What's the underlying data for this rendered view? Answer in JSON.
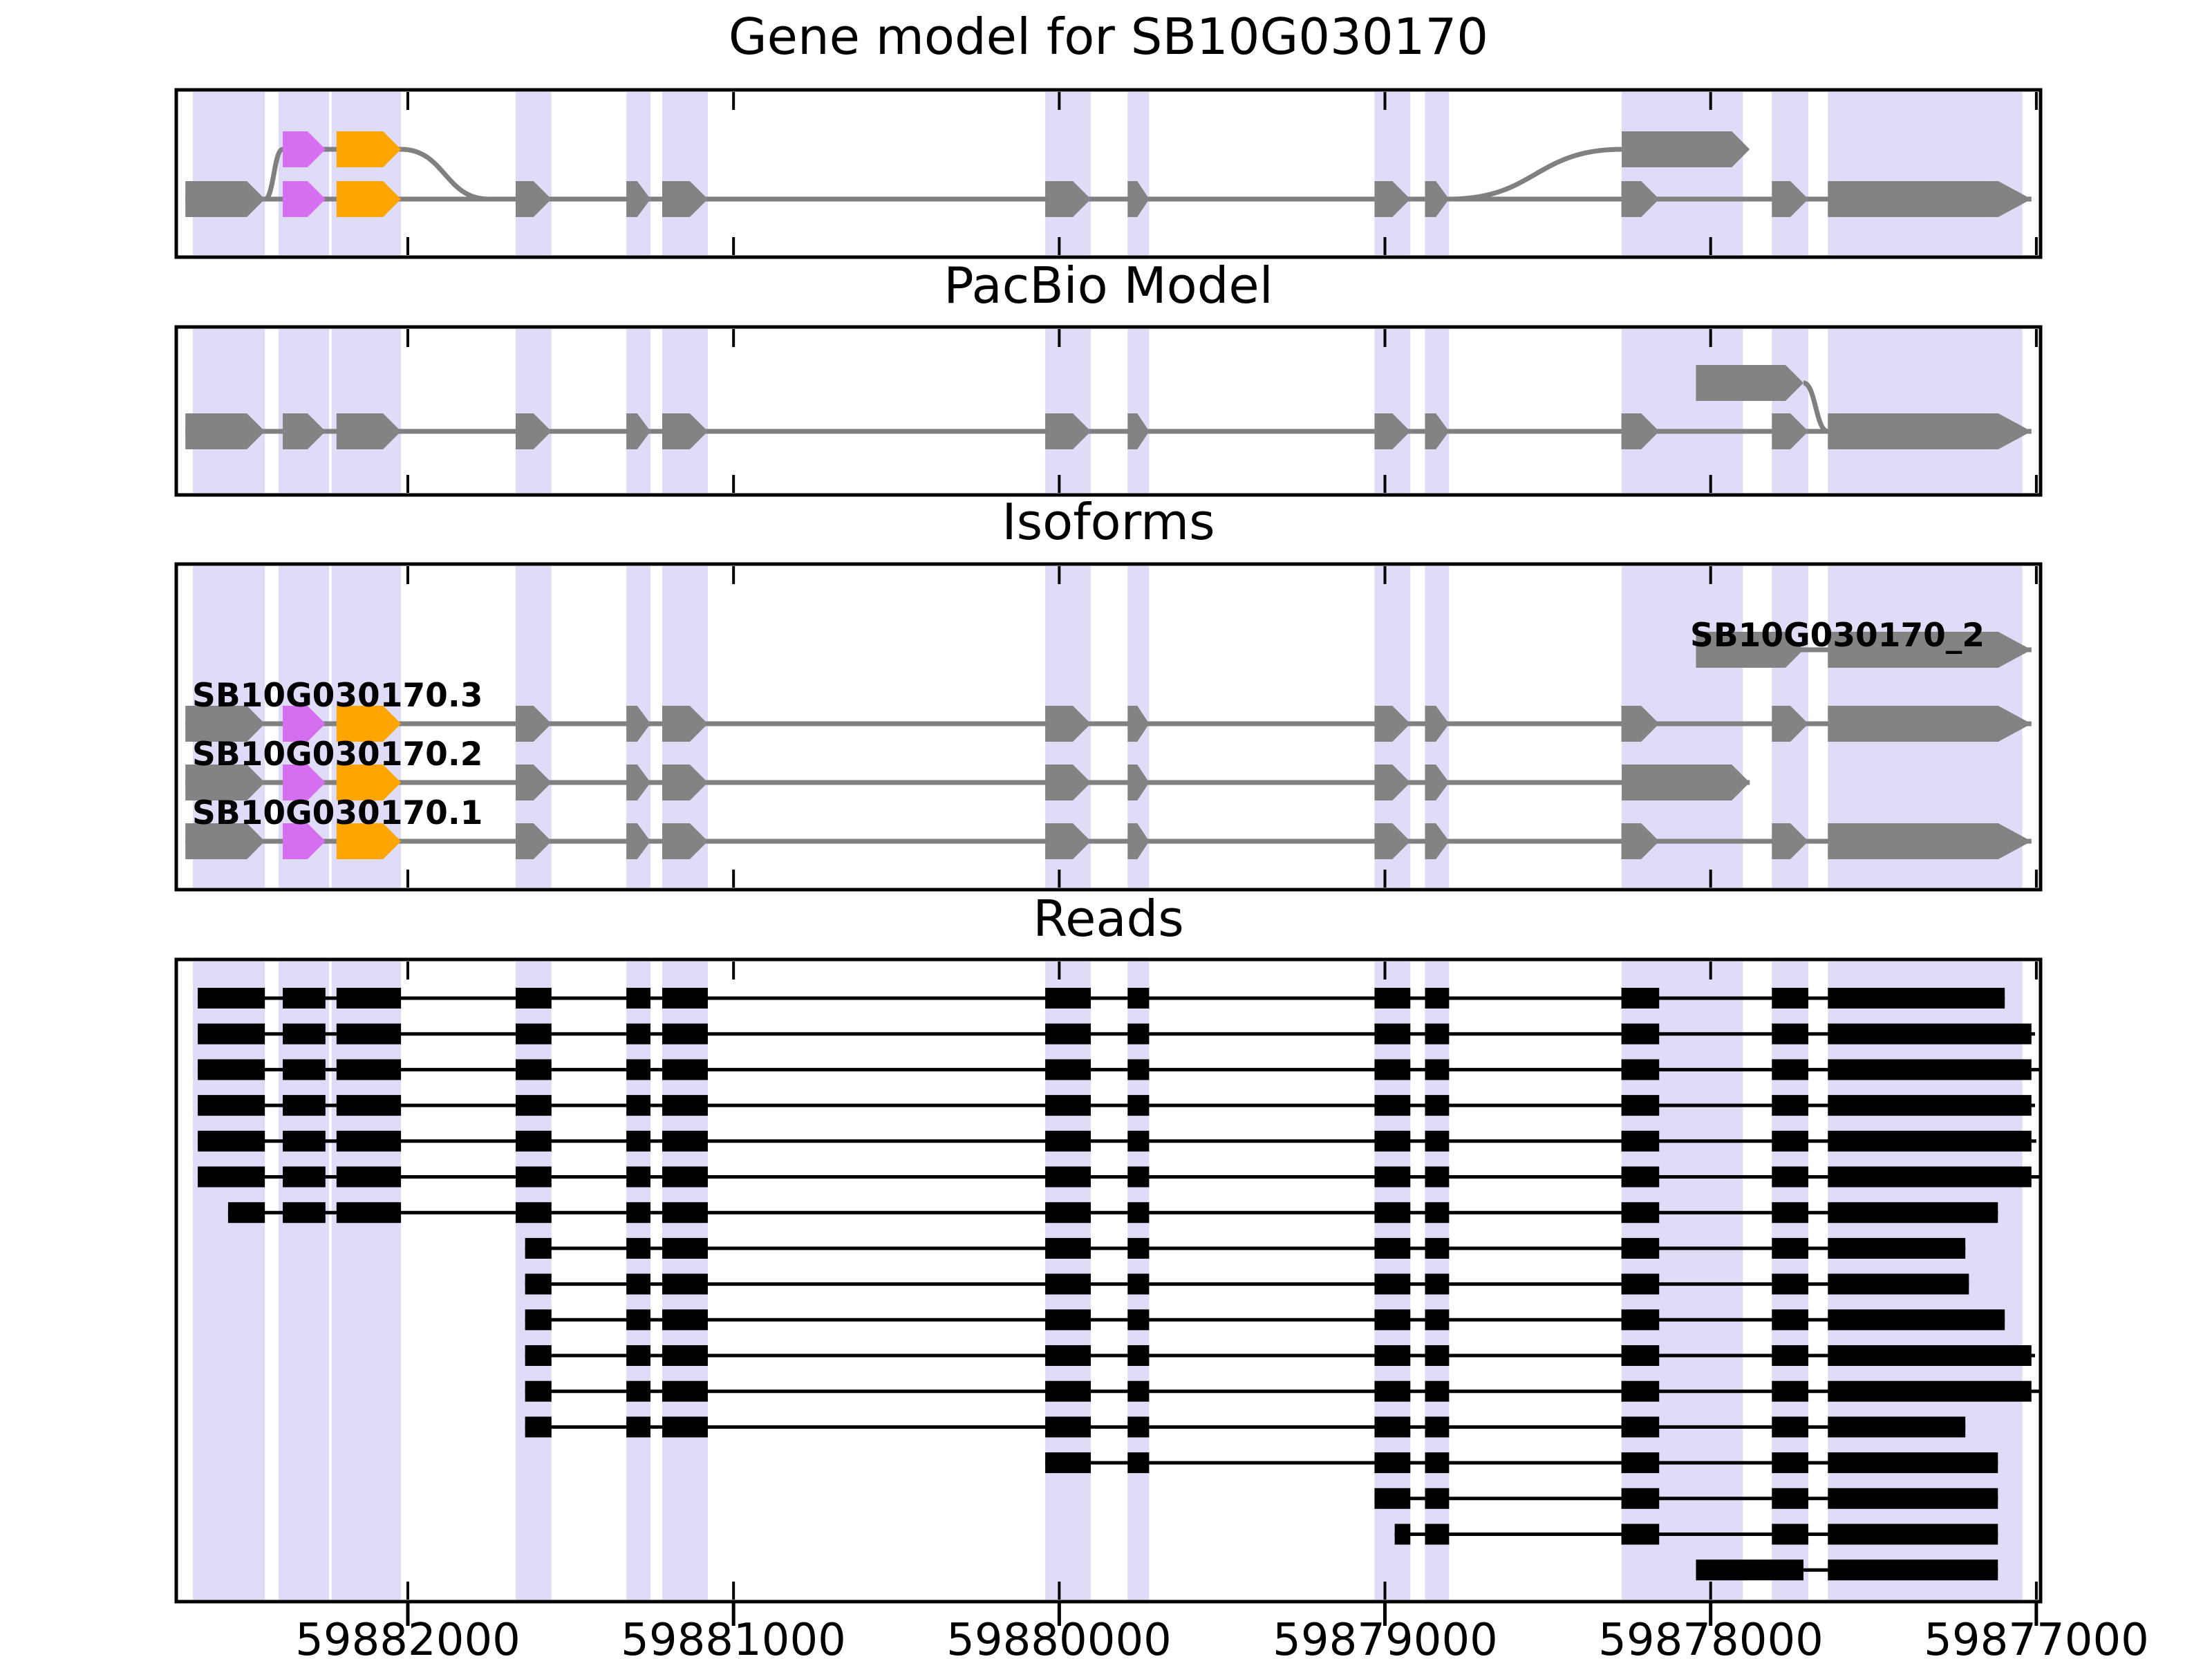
{
  "titles": {
    "gene_model": "Gene model for SB10G030170",
    "pacbio": "PacBio Model",
    "isoforms": "Isoforms",
    "reads": "Reads"
  },
  "axis": {
    "left_bp": 59882711,
    "right_bp": 59876987,
    "ticks": [
      {
        "value": 59882000,
        "label": "59882000"
      },
      {
        "value": 59881000,
        "label": "59881000"
      },
      {
        "value": 59880000,
        "label": "59880000"
      },
      {
        "value": 59879000,
        "label": "59879000"
      },
      {
        "value": 59878000,
        "label": "59878000"
      },
      {
        "value": 59877000,
        "label": "59877000"
      }
    ]
  },
  "colors": {
    "exon_gray": "#838383",
    "intron_gray": "#808080",
    "violet": "#d66ef2",
    "orange": "#ffa500",
    "read_black": "#000000",
    "band": "#dedcf6",
    "border": "#000000",
    "background": "#ffffff"
  },
  "exons": {
    "e1": {
      "start": 59882683,
      "end": 59882439
    },
    "e2": {
      "start": 59882384,
      "end": 59882253
    },
    "e3": {
      "start": 59882219,
      "end": 59882021
    },
    "e4": {
      "start": 59881669,
      "end": 59881559
    },
    "e5": {
      "start": 59881329,
      "end": 59881255
    },
    "e6": {
      "start": 59881219,
      "end": 59881079
    },
    "e7": {
      "start": 59880043,
      "end": 59879903
    },
    "e8": {
      "start": 59879790,
      "end": 59879724
    },
    "e9": {
      "start": 59879032,
      "end": 59878922
    },
    "e10": {
      "start": 59878877,
      "end": 59878803
    },
    "e11": {
      "start": 59878274,
      "end": 59878158
    },
    "e12": {
      "start": 59877812,
      "end": 59877700
    },
    "e13": {
      "start": 59877640,
      "end": 59877015
    },
    "alt_last": {
      "start": 59878273,
      "end": 59877880
    },
    "p2_first": {
      "start": 59878045,
      "end": 59877715
    }
  },
  "highlight_bands": [
    [
      59882660,
      59882439
    ],
    [
      59882397,
      59882242
    ],
    [
      59882234,
      59882021
    ],
    [
      59881669,
      59881559
    ],
    [
      59881329,
      59881255
    ],
    [
      59881219,
      59881079
    ],
    [
      59880043,
      59879903
    ],
    [
      59879790,
      59879724
    ],
    [
      59879032,
      59878922
    ],
    [
      59878877,
      59878803
    ],
    [
      59878273,
      59877901
    ],
    [
      59877812,
      59877700
    ],
    [
      59877640,
      59877043
    ]
  ],
  "gene_model": {
    "base_exons": [
      "e1",
      "e2",
      "e3",
      "e4",
      "e5",
      "e6",
      "e7",
      "e8",
      "e9",
      "e10",
      "e11",
      "e12",
      "e13"
    ],
    "exon_colors": {
      "e2": "violet",
      "e3": "orange"
    },
    "up_exons": [
      {
        "id": "e2",
        "color": "violet"
      },
      {
        "id": "e3",
        "color": "orange"
      },
      {
        "id": "alt_last",
        "color": "gray"
      }
    ],
    "up_line": {
      "from": 59882384,
      "to": 59882021
    },
    "curves": [
      {
        "x1_bp": 59882439,
        "level1": "base",
        "x2_bp": 59882384,
        "level2": "up"
      },
      {
        "x1_bp": 59882021,
        "level1": "up",
        "x2_bp": 59881752,
        "level2": "base"
      },
      {
        "x1_bp": 59878803,
        "level1": "base",
        "x2_bp": 59878273,
        "level2": "up"
      }
    ]
  },
  "pacbio_model": {
    "base_exons": [
      "e1",
      "e2",
      "e3",
      "e4",
      "e5",
      "e6",
      "e7",
      "e8",
      "e9",
      "e10",
      "e11",
      "e12",
      "e13"
    ],
    "exon_colors": {},
    "up_exons": [
      {
        "id": "p2_first",
        "color": "gray"
      }
    ],
    "curves": [
      {
        "x1_bp": 59877715,
        "level1": "up",
        "x2_bp": 59877640,
        "level2": "base"
      }
    ]
  },
  "isoforms": [
    {
      "label": "SB10G030170_2",
      "exons": [
        "p2_first",
        "e13"
      ],
      "exon_colors": {}
    },
    {
      "label": "SB10G030170.3",
      "exons": [
        "e1",
        "e2",
        "e3",
        "e4",
        "e5",
        "e6",
        "e7",
        "e8",
        "e9",
        "e10",
        "e11",
        "e12",
        "e13"
      ],
      "exon_colors": {
        "e2": "violet",
        "e3": "orange"
      }
    },
    {
      "label": "SB10G030170.2",
      "exons": [
        "e1",
        "e2",
        "e3",
        "e4",
        "e5",
        "e6",
        "e7",
        "e8",
        "e9",
        "e10",
        "alt_last"
      ],
      "exon_colors": {
        "e2": "violet",
        "e3": "orange"
      }
    },
    {
      "label": "SB10G030170.1",
      "exons": [
        "e1",
        "e2",
        "e3",
        "e4",
        "e5",
        "e6",
        "e7",
        "e8",
        "e9",
        "e10",
        "e11",
        "e12",
        "e13"
      ],
      "exon_colors": {
        "e2": "violet",
        "e3": "orange"
      }
    }
  ],
  "reads": [
    {
      "start": 59882645,
      "end": 59877097,
      "exons": [
        "e1",
        "e2",
        "e3",
        "e4",
        "e5",
        "e6",
        "e7",
        "e8",
        "e9",
        "e10",
        "e11",
        "e12",
        "e13"
      ]
    },
    {
      "start": 59882645,
      "end": 59877004,
      "exons": [
        "e1",
        "e2",
        "e3",
        "e4",
        "e5",
        "e6",
        "e7",
        "e8",
        "e9",
        "e10",
        "e11",
        "e12",
        "e13"
      ]
    },
    {
      "start": 59882645,
      "end": 59876990,
      "exons": [
        "e1",
        "e2",
        "e3",
        "e4",
        "e5",
        "e6",
        "e7",
        "e8",
        "e9",
        "e10",
        "e11",
        "e12",
        "e13"
      ]
    },
    {
      "start": 59882645,
      "end": 59877004,
      "exons": [
        "e1",
        "e2",
        "e3",
        "e4",
        "e5",
        "e6",
        "e7",
        "e8",
        "e9",
        "e10",
        "e11",
        "e12",
        "e13"
      ]
    },
    {
      "start": 59882645,
      "end": 59877000,
      "exons": [
        "e1",
        "e2",
        "e3",
        "e4",
        "e5",
        "e6",
        "e7",
        "e8",
        "e9",
        "e10",
        "e11",
        "e12",
        "e13"
      ]
    },
    {
      "start": 59882645,
      "end": 59876990,
      "exons": [
        "e1",
        "e2",
        "e3",
        "e4",
        "e5",
        "e6",
        "e7",
        "e8",
        "e9",
        "e10",
        "e11",
        "e12",
        "e13"
      ]
    },
    {
      "start": 59882552,
      "end": 59877118,
      "exons": [
        "e1",
        "e2",
        "e3",
        "e4",
        "e5",
        "e6",
        "e7",
        "e8",
        "e9",
        "e10",
        "e11",
        "e12",
        "e13"
      ]
    },
    {
      "start": 59881640,
      "end": 59877218,
      "exons": [
        "e4",
        "e5",
        "e6",
        "e7",
        "e8",
        "e9",
        "e10",
        "e11",
        "e12",
        "e13"
      ]
    },
    {
      "start": 59881640,
      "end": 59877207,
      "exons": [
        "e4",
        "e5",
        "e6",
        "e7",
        "e8",
        "e9",
        "e10",
        "e11",
        "e12",
        "e13"
      ]
    },
    {
      "start": 59881640,
      "end": 59877097,
      "exons": [
        "e4",
        "e5",
        "e6",
        "e7",
        "e8",
        "e9",
        "e10",
        "e11",
        "e12",
        "e13"
      ]
    },
    {
      "start": 59881640,
      "end": 59877004,
      "exons": [
        "e4",
        "e5",
        "e6",
        "e7",
        "e8",
        "e9",
        "e10",
        "e11",
        "e12",
        "e13"
      ]
    },
    {
      "start": 59881640,
      "end": 59876990,
      "exons": [
        "e4",
        "e5",
        "e6",
        "e7",
        "e8",
        "e9",
        "e10",
        "e11",
        "e12",
        "e13"
      ]
    },
    {
      "start": 59881640,
      "end": 59877218,
      "exons": [
        "e4",
        "e5",
        "e6",
        "e7",
        "e8",
        "e9",
        "e10",
        "e11",
        "e12",
        "e13"
      ]
    },
    {
      "start": 59880043,
      "end": 59877118,
      "exons": [
        "e7",
        "e8",
        "e9",
        "e10",
        "e11",
        "e12",
        "e13"
      ]
    },
    {
      "start": 59879032,
      "end": 59877118,
      "exons": [
        "e9",
        "e10",
        "e11",
        "e12",
        "e13"
      ]
    },
    {
      "start": 59878970,
      "end": 59877118,
      "exons": [
        "e9",
        "e10",
        "e11",
        "e12",
        "e13"
      ]
    },
    {
      "start": 59878045,
      "end": 59877118,
      "exons": [
        "p2_first",
        "e13"
      ]
    }
  ]
}
